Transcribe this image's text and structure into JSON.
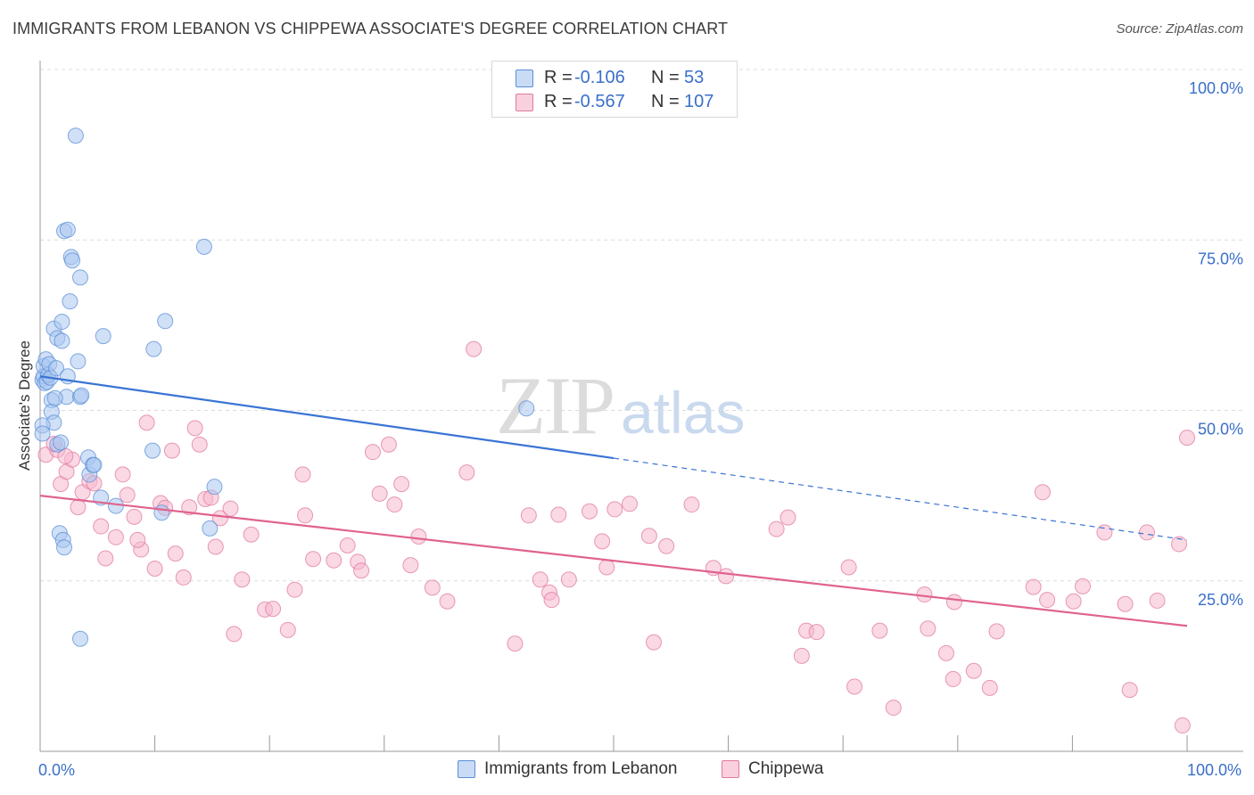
{
  "header": {
    "title": "IMMIGRANTS FROM LEBANON VS CHIPPEWA ASSOCIATE'S DEGREE CORRELATION CHART",
    "source": "Source: ZipAtlas.com"
  },
  "watermark": {
    "zip": "ZIP",
    "atlas": "atlas"
  },
  "legend_top": [
    {
      "r_label": "R =",
      "r_value": "-0.106",
      "n_label": "N =",
      "n_value": "53",
      "color": "#a9c6f0"
    },
    {
      "r_label": "R =",
      "r_value": "-0.567",
      "n_label": "N =",
      "n_value": "107",
      "color": "#f6b8cd"
    }
  ],
  "legend_bottom": [
    {
      "label": "Immigrants from Lebanon",
      "color": "#a9c6f0"
    },
    {
      "label": "Chippewa",
      "color": "#f6b8cd"
    }
  ],
  "chart_data": {
    "type": "scatter",
    "title": "IMMIGRANTS FROM LEBANON VS CHIPPEWA ASSOCIATE'S DEGREE CORRELATION CHART",
    "xlabel": "",
    "ylabel": "Associate's Degree",
    "xlim": [
      0,
      100
    ],
    "ylim": [
      0,
      100
    ],
    "x_tick_labels": [
      "0.0%",
      "100.0%"
    ],
    "y_tick_labels": [
      "25.0%",
      "50.0%",
      "75.0%",
      "100.0%"
    ],
    "y_ticks": [
      25,
      50,
      75,
      100
    ],
    "grid": true,
    "legend": "bottom",
    "series": [
      {
        "name": "Immigrants from Lebanon",
        "color": "#a9c6f0",
        "stroke": "#5b8fd6",
        "trend": {
          "x0": 0,
          "y0": 55.0,
          "x1": 100,
          "y1": 31.0,
          "solid_until": 50
        },
        "trend_color": "#3a74d4",
        "points": [
          [
            0.2,
            54.5
          ],
          [
            0.3,
            55.0
          ],
          [
            0.3,
            56.5
          ],
          [
            0.4,
            54.0
          ],
          [
            0.5,
            57.5
          ],
          [
            0.6,
            54.2
          ],
          [
            0.7,
            55.2
          ],
          [
            0.8,
            56.8
          ],
          [
            0.9,
            54.8
          ],
          [
            1.0,
            51.5
          ],
          [
            1.0,
            49.8
          ],
          [
            1.2,
            62.0
          ],
          [
            1.2,
            48.2
          ],
          [
            1.4,
            56.2
          ],
          [
            1.5,
            45.0
          ],
          [
            1.5,
            60.6
          ],
          [
            1.7,
            32.0
          ],
          [
            1.8,
            45.3
          ],
          [
            1.9,
            63.0
          ],
          [
            1.9,
            60.2
          ],
          [
            2.0,
            31.0
          ],
          [
            2.1,
            29.9
          ],
          [
            2.1,
            76.3
          ],
          [
            2.3,
            52.0
          ],
          [
            2.4,
            76.5
          ],
          [
            2.4,
            55.0
          ],
          [
            2.6,
            66.0
          ],
          [
            2.7,
            72.5
          ],
          [
            2.8,
            72.0
          ],
          [
            3.1,
            90.3
          ],
          [
            3.3,
            57.2
          ],
          [
            3.5,
            16.5
          ],
          [
            3.5,
            69.5
          ],
          [
            3.5,
            52.0
          ],
          [
            3.6,
            52.2
          ],
          [
            4.2,
            43.1
          ],
          [
            4.3,
            40.6
          ],
          [
            4.6,
            42.0
          ],
          [
            4.7,
            42.0
          ],
          [
            5.3,
            37.2
          ],
          [
            5.5,
            60.9
          ],
          [
            6.6,
            36.0
          ],
          [
            9.8,
            44.1
          ],
          [
            9.9,
            59.0
          ],
          [
            10.6,
            35.0
          ],
          [
            10.9,
            63.1
          ],
          [
            14.3,
            74.0
          ],
          [
            14.8,
            32.7
          ],
          [
            15.2,
            38.8
          ],
          [
            42.4,
            50.3
          ],
          [
            0.2,
            47.8
          ],
          [
            0.2,
            46.6
          ],
          [
            1.3,
            51.8
          ]
        ]
      },
      {
        "name": "Chippewa",
        "color": "#f6b8cd",
        "stroke": "#e07aa0",
        "trend": {
          "x0": 0,
          "y0": 37.5,
          "x1": 100,
          "y1": 18.4,
          "solid_until": 100
        },
        "trend_color": "#e0628f",
        "points": [
          [
            0.5,
            43.5
          ],
          [
            1.5,
            44.2
          ],
          [
            1.8,
            39.2
          ],
          [
            2.3,
            41.0
          ],
          [
            2.8,
            42.8
          ],
          [
            3.3,
            35.8
          ],
          [
            3.7,
            38.0
          ],
          [
            4.3,
            39.6
          ],
          [
            4.7,
            39.3
          ],
          [
            5.3,
            33.0
          ],
          [
            5.7,
            28.3
          ],
          [
            6.6,
            31.4
          ],
          [
            7.2,
            40.6
          ],
          [
            7.6,
            37.6
          ],
          [
            8.2,
            34.4
          ],
          [
            8.8,
            29.6
          ],
          [
            9.3,
            48.2
          ],
          [
            10.0,
            26.8
          ],
          [
            10.5,
            36.4
          ],
          [
            10.9,
            35.7
          ],
          [
            11.5,
            44.1
          ],
          [
            11.8,
            29.0
          ],
          [
            12.5,
            25.5
          ],
          [
            13.0,
            35.8
          ],
          [
            13.5,
            47.4
          ],
          [
            13.9,
            45.0
          ],
          [
            14.4,
            37.0
          ],
          [
            14.9,
            37.2
          ],
          [
            15.3,
            30.0
          ],
          [
            15.7,
            34.2
          ],
          [
            16.6,
            35.6
          ],
          [
            16.9,
            17.2
          ],
          [
            17.6,
            25.2
          ],
          [
            18.4,
            31.8
          ],
          [
            19.6,
            20.8
          ],
          [
            20.3,
            20.9
          ],
          [
            21.6,
            17.8
          ],
          [
            22.2,
            23.7
          ],
          [
            22.9,
            40.6
          ],
          [
            23.1,
            34.6
          ],
          [
            23.8,
            28.2
          ],
          [
            25.6,
            28.0
          ],
          [
            26.8,
            30.2
          ],
          [
            27.7,
            27.8
          ],
          [
            28.0,
            26.5
          ],
          [
            29.0,
            43.9
          ],
          [
            29.6,
            37.8
          ],
          [
            30.4,
            45.0
          ],
          [
            30.9,
            36.2
          ],
          [
            31.5,
            39.2
          ],
          [
            32.3,
            27.3
          ],
          [
            33.0,
            31.5
          ],
          [
            34.2,
            24.0
          ],
          [
            35.5,
            22.0
          ],
          [
            37.2,
            40.9
          ],
          [
            37.8,
            59.0
          ],
          [
            41.4,
            15.8
          ],
          [
            42.6,
            34.6
          ],
          [
            43.6,
            25.2
          ],
          [
            44.4,
            23.3
          ],
          [
            44.6,
            22.2
          ],
          [
            45.2,
            34.7
          ],
          [
            46.1,
            25.2
          ],
          [
            47.9,
            35.2
          ],
          [
            49.0,
            30.8
          ],
          [
            49.4,
            27.0
          ],
          [
            50.1,
            35.5
          ],
          [
            51.4,
            36.3
          ],
          [
            53.1,
            31.6
          ],
          [
            53.5,
            16.0
          ],
          [
            54.6,
            30.1
          ],
          [
            56.8,
            36.2
          ],
          [
            58.7,
            26.9
          ],
          [
            59.8,
            25.7
          ],
          [
            64.2,
            32.6
          ],
          [
            65.2,
            34.3
          ],
          [
            66.4,
            14.0
          ],
          [
            66.8,
            17.7
          ],
          [
            67.7,
            17.5
          ],
          [
            70.5,
            27.0
          ],
          [
            71.0,
            9.5
          ],
          [
            73.2,
            17.7
          ],
          [
            74.4,
            6.4
          ],
          [
            77.1,
            23.0
          ],
          [
            77.4,
            18.0
          ],
          [
            79.0,
            14.4
          ],
          [
            79.6,
            10.6
          ],
          [
            79.7,
            21.9
          ],
          [
            81.4,
            11.8
          ],
          [
            82.8,
            9.3
          ],
          [
            83.4,
            17.6
          ],
          [
            86.6,
            24.1
          ],
          [
            87.4,
            38.0
          ],
          [
            87.8,
            22.2
          ],
          [
            90.1,
            22.0
          ],
          [
            90.9,
            24.2
          ],
          [
            92.8,
            32.1
          ],
          [
            94.6,
            21.6
          ],
          [
            95.0,
            9.0
          ],
          [
            96.5,
            32.1
          ],
          [
            97.4,
            22.1
          ],
          [
            99.3,
            30.4
          ],
          [
            99.6,
            3.8
          ],
          [
            100.0,
            46.0
          ],
          [
            1.2,
            45.1
          ],
          [
            2.2,
            43.3
          ],
          [
            8.5,
            31.0
          ]
        ]
      }
    ]
  }
}
